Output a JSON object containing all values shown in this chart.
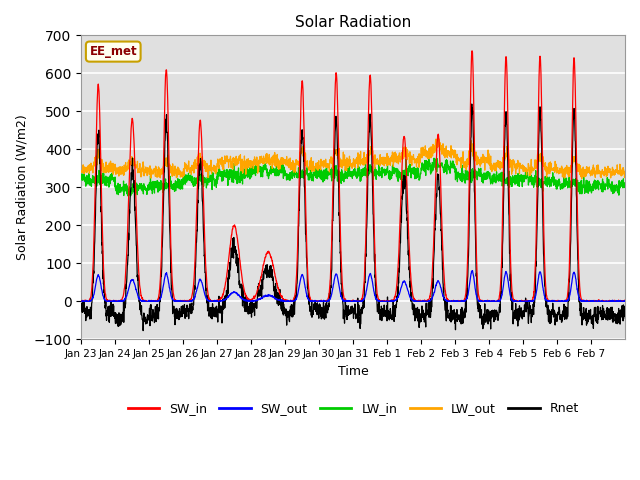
{
  "title": "Solar Radiation",
  "ylabel": "Solar Radiation (W/m2)",
  "xlabel": "Time",
  "ylim": [
    -100,
    700
  ],
  "yticks": [
    -100,
    0,
    100,
    200,
    300,
    400,
    500,
    600,
    700
  ],
  "bg_color": "#e0e0e0",
  "annotation_text": "EE_met",
  "annotation_bg": "#fffff0",
  "annotation_border": "#c8a000",
  "colors": {
    "SW_in": "#ff0000",
    "SW_out": "#0000ff",
    "LW_in": "#00cc00",
    "LW_out": "#ffa500",
    "Rnet": "#000000"
  },
  "x_tick_labels": [
    "Jan 23",
    "Jan 24",
    "Jan 25",
    "Jan 26",
    "Jan 27",
    "Jan 28",
    "Jan 29",
    "Jan 30",
    "Jan 31",
    "Feb 1",
    "Feb 2",
    "Feb 3",
    "Feb 4",
    "Feb 5",
    "Feb 6",
    "Feb 7"
  ],
  "n_days": 16,
  "pts_per_day": 144,
  "sw_peaks": [
    570,
    480,
    610,
    475,
    200,
    130,
    580,
    600,
    595,
    435,
    440,
    660,
    645,
    645,
    640,
    0
  ],
  "sw_widths": [
    0.08,
    0.1,
    0.08,
    0.09,
    0.15,
    0.18,
    0.08,
    0.08,
    0.08,
    0.1,
    0.09,
    0.07,
    0.07,
    0.07,
    0.07,
    0.07
  ],
  "lw_in_base": 315,
  "lw_out_base": 345,
  "night_rnet": -40
}
